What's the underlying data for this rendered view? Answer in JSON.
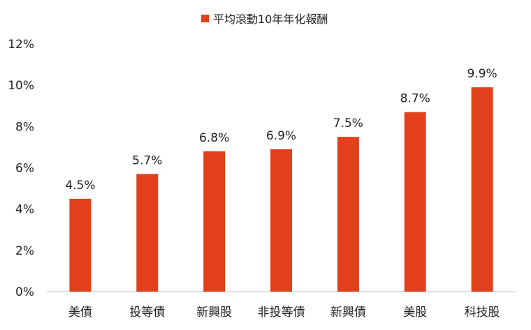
{
  "chart_data": {
    "type": "bar",
    "legend": {
      "label": "平均滾動10年年化報酬",
      "position": "top"
    },
    "categories": [
      "美債",
      "投等債",
      "新興股",
      "非投等債",
      "新興債",
      "美股",
      "科技股"
    ],
    "series": [
      {
        "name": "平均滾動10年年化報酬",
        "values": [
          4.5,
          5.7,
          6.8,
          6.9,
          7.5,
          8.7,
          9.9
        ],
        "data_labels": [
          "4.5%",
          "5.7%",
          "6.8%",
          "6.9%",
          "7.5%",
          "8.7%",
          "9.9%"
        ]
      }
    ],
    "y_ticks": [
      "0%",
      "2%",
      "4%",
      "6%",
      "8%",
      "10%",
      "12%"
    ],
    "ylim": [
      0,
      12
    ],
    "grid": false,
    "colors": {
      "bar": "#E2401C",
      "axis": "#BFBFBF",
      "text": "#222222"
    }
  }
}
